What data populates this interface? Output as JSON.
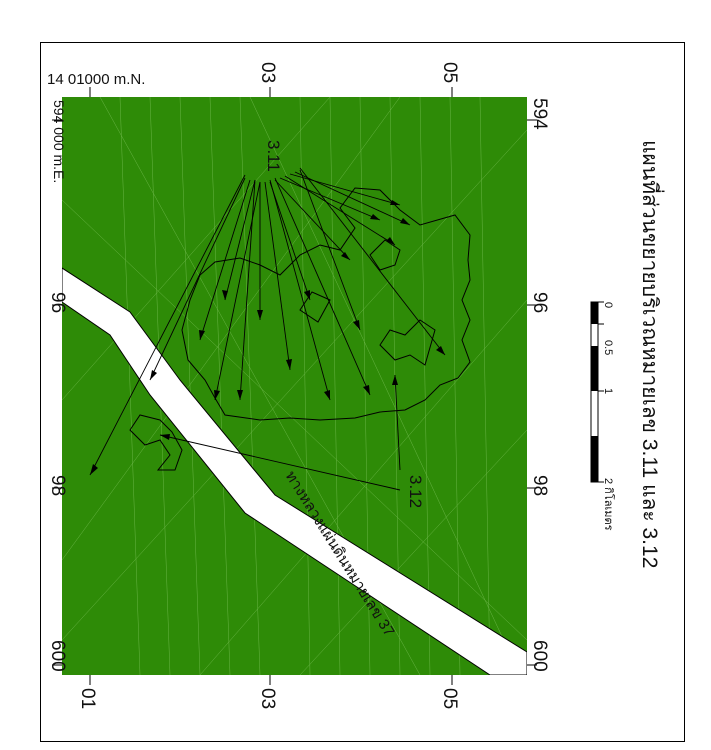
{
  "map": {
    "title": "แผนที่ส่วนขยายบริเวณหมายเลข 3.11 และ 3.12",
    "road_label": "ทางหลวงแผ่นดินหมายเลข 37",
    "corner_northing_label": "14 01000 m.N.",
    "corner_easting_label": "594 000 m.E.",
    "northing_ticks": [
      "03",
      "05",
      "01",
      "03",
      "05"
    ],
    "easting_ticks": [
      "594",
      "96",
      "98",
      "600",
      "96",
      "98",
      "600"
    ],
    "area_labels": [
      "3.11",
      "3.12"
    ],
    "scale_bar": {
      "ticks": [
        "0",
        "0.5",
        "1",
        "2 กิโลเมตร"
      ]
    },
    "colors": {
      "background": "#2e8b07",
      "texture": "#8fcf6a",
      "road": "#ffffff",
      "lines": "#000000",
      "frame": "#000000"
    }
  }
}
